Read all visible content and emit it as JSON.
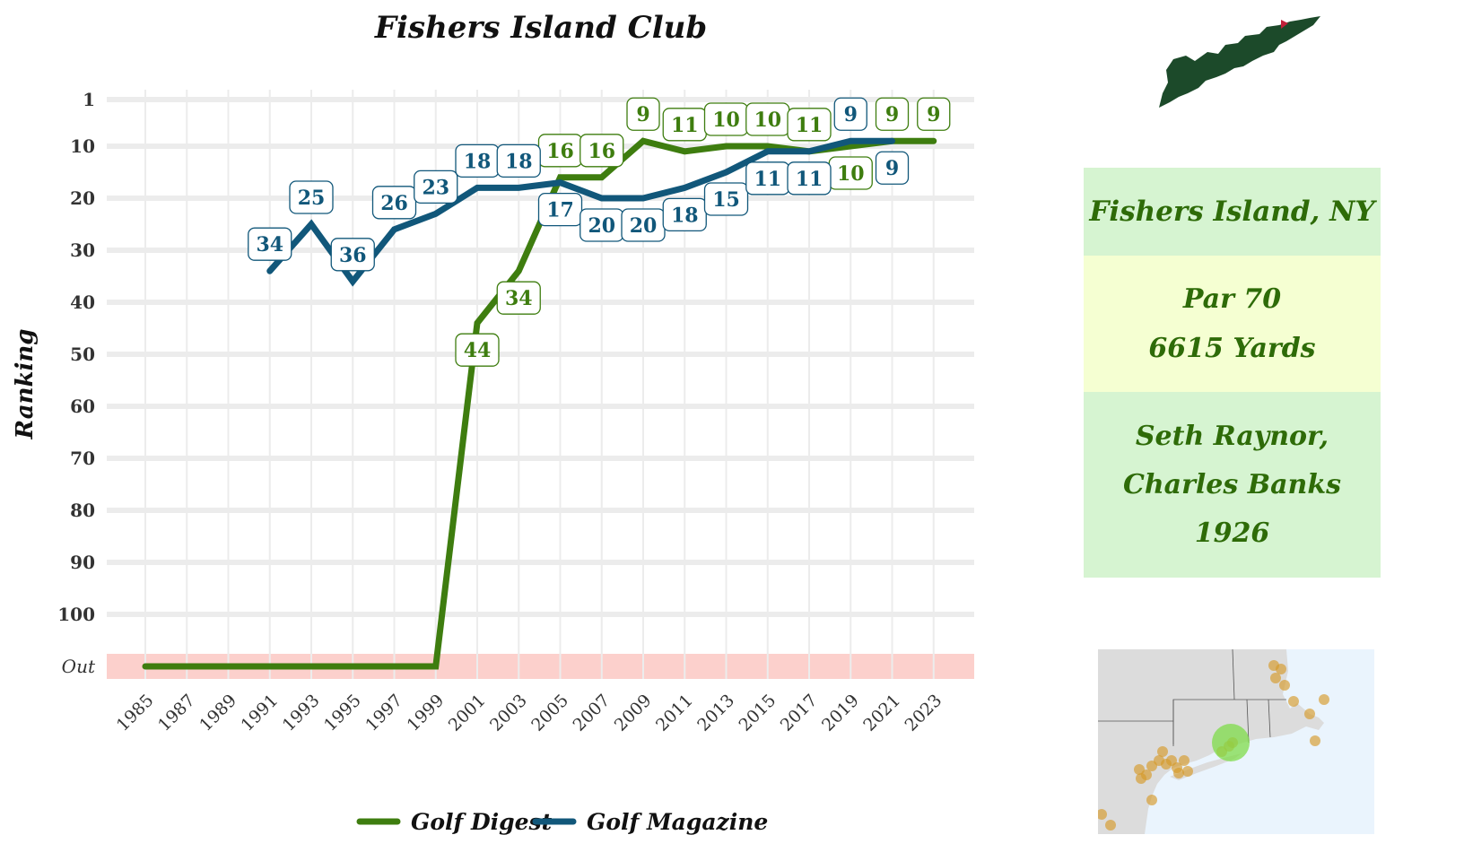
{
  "chart_data": {
    "type": "line",
    "title": "Fishers Island Club",
    "xlabel": "",
    "ylabel": "Ranking",
    "x_ticks": [
      "1985",
      "1987",
      "1989",
      "1991",
      "1993",
      "1995",
      "1997",
      "1999",
      "2001",
      "2003",
      "2005",
      "2007",
      "2009",
      "2011",
      "2013",
      "2015",
      "2017",
      "2019",
      "2021",
      "2023"
    ],
    "y_ticks": [
      "1",
      "10",
      "20",
      "30",
      "40",
      "50",
      "60",
      "70",
      "80",
      "90",
      "100",
      "Out"
    ],
    "y_reversed": true,
    "out_band": "Out",
    "grid": true,
    "legend_position": "bottom",
    "series": [
      {
        "name": "Golf Digest",
        "color": "#3e7d0f",
        "points": [
          {
            "x": 1985,
            "y": "Out"
          },
          {
            "x": 1987,
            "y": "Out"
          },
          {
            "x": 1989,
            "y": "Out"
          },
          {
            "x": 1991,
            "y": "Out"
          },
          {
            "x": 1993,
            "y": "Out"
          },
          {
            "x": 1995,
            "y": "Out"
          },
          {
            "x": 1997,
            "y": "Out"
          },
          {
            "x": 1999,
            "y": "Out"
          },
          {
            "x": 2001,
            "y": 44
          },
          {
            "x": 2003,
            "y": 34
          },
          {
            "x": 2005,
            "y": 16
          },
          {
            "x": 2007,
            "y": 16
          },
          {
            "x": 2009,
            "y": 9
          },
          {
            "x": 2011,
            "y": 11
          },
          {
            "x": 2013,
            "y": 10
          },
          {
            "x": 2015,
            "y": 10
          },
          {
            "x": 2017,
            "y": 11
          },
          {
            "x": 2019,
            "y": 10
          },
          {
            "x": 2021,
            "y": 9
          },
          {
            "x": 2023,
            "y": 9
          }
        ],
        "labels": [
          {
            "x": 2001,
            "text": "44",
            "pos": "below"
          },
          {
            "x": 2003,
            "text": "34",
            "pos": "below"
          },
          {
            "x": 2005,
            "text": "16",
            "pos": "above"
          },
          {
            "x": 2007,
            "text": "16",
            "pos": "above"
          },
          {
            "x": 2009,
            "text": "9",
            "pos": "above"
          },
          {
            "x": 2011,
            "text": "11",
            "pos": "above"
          },
          {
            "x": 2013,
            "text": "10",
            "pos": "above"
          },
          {
            "x": 2015,
            "text": "10",
            "pos": "above"
          },
          {
            "x": 2017,
            "text": "11",
            "pos": "above"
          },
          {
            "x": 2019,
            "text": "10",
            "pos": "below"
          },
          {
            "x": 2021,
            "text": "9",
            "pos": "above"
          },
          {
            "x": 2023,
            "text": "9",
            "pos": "above"
          }
        ]
      },
      {
        "name": "Golf Magazine",
        "color": "#11577a",
        "points": [
          {
            "x": 1991,
            "y": 34
          },
          {
            "x": 1993,
            "y": 25
          },
          {
            "x": 1995,
            "y": 36
          },
          {
            "x": 1997,
            "y": 26
          },
          {
            "x": 1999,
            "y": 23
          },
          {
            "x": 2001,
            "y": 18
          },
          {
            "x": 2003,
            "y": 18
          },
          {
            "x": 2005,
            "y": 17
          },
          {
            "x": 2007,
            "y": 20
          },
          {
            "x": 2009,
            "y": 20
          },
          {
            "x": 2011,
            "y": 18
          },
          {
            "x": 2013,
            "y": 15
          },
          {
            "x": 2015,
            "y": 11
          },
          {
            "x": 2017,
            "y": 11
          },
          {
            "x": 2019,
            "y": 9
          },
          {
            "x": 2021,
            "y": 9
          }
        ],
        "labels": [
          {
            "x": 1991,
            "text": "34",
            "pos": "above"
          },
          {
            "x": 1993,
            "text": "25",
            "pos": "above"
          },
          {
            "x": 1995,
            "text": "36",
            "pos": "above"
          },
          {
            "x": 1997,
            "text": "26",
            "pos": "above"
          },
          {
            "x": 1999,
            "text": "23",
            "pos": "above"
          },
          {
            "x": 2001,
            "text": "18",
            "pos": "above"
          },
          {
            "x": 2003,
            "text": "18",
            "pos": "above"
          },
          {
            "x": 2005,
            "text": "17",
            "pos": "below"
          },
          {
            "x": 2007,
            "text": "20",
            "pos": "below"
          },
          {
            "x": 2009,
            "text": "20",
            "pos": "below"
          },
          {
            "x": 2011,
            "text": "18",
            "pos": "below"
          },
          {
            "x": 2013,
            "text": "15",
            "pos": "below"
          },
          {
            "x": 2015,
            "text": "11",
            "pos": "below"
          },
          {
            "x": 2017,
            "text": "11",
            "pos": "below"
          },
          {
            "x": 2019,
            "text": "9",
            "pos": "above"
          },
          {
            "x": 2021,
            "text": "9",
            "pos": "below"
          }
        ]
      }
    ]
  },
  "info": {
    "location": "Fishers Island, NY",
    "par": "Par 70",
    "yards": "6615 Yards",
    "architect_1": "Seth Raynor,",
    "architect_2": "Charles Banks",
    "year": "1926"
  },
  "colors": {
    "out_band": "#fcd0cc",
    "gridline": "#ececec",
    "info_green": "#d6f4d1",
    "info_yellow": "#f5ffd2",
    "info_text": "#2e6b08",
    "island": "#1c4a2a",
    "map_land": "#dcdcdc",
    "map_water": "#eaf4fd",
    "course_dot": "#d69a2a",
    "highlight": "#7fdc4a"
  }
}
